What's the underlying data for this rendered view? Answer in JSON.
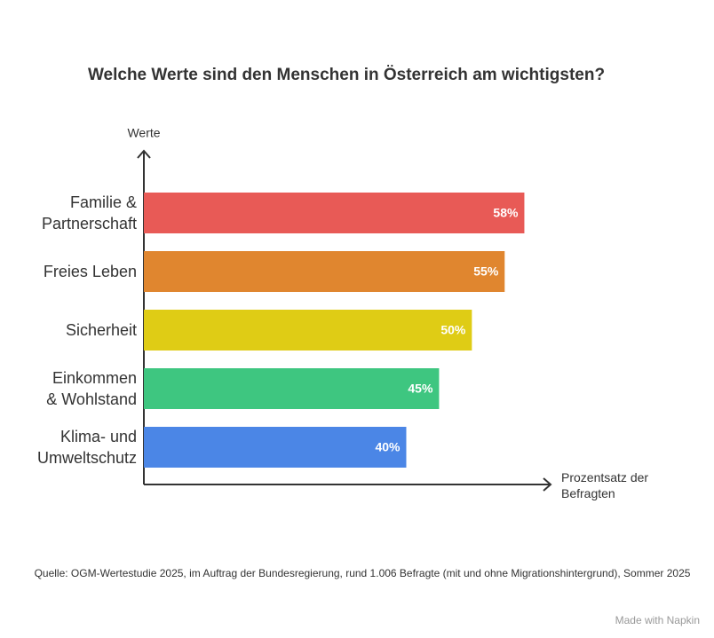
{
  "chart_data": {
    "type": "bar",
    "orientation": "horizontal",
    "title": "Welche Werte sind den Menschen in Österreich am wichtigsten?",
    "y_label": "Werte",
    "x_label": "Prozentsatz der\nBefragten",
    "categories": [
      "Familie &\nPartnerschaft",
      "Freies Leben",
      "Sicherheit",
      "Einkommen\n& Wohlstand",
      "Klima- und\nUmweltschutz"
    ],
    "values": [
      58,
      55,
      50,
      45,
      40
    ],
    "value_labels": [
      "58%",
      "55%",
      "50%",
      "45%",
      "40%"
    ],
    "colors": [
      "#e85a56",
      "#e0862f",
      "#dfcc15",
      "#3ec680",
      "#4b86e6"
    ],
    "xlim": [
      0,
      62
    ],
    "source": "Quelle: OGM-Wertestudie 2025, im Auftrag der Bundesregierung, rund 1.006 Befragte (mit und ohne Migrationshintergrund), Sommer 2025",
    "branding": "Made with Napkin"
  }
}
